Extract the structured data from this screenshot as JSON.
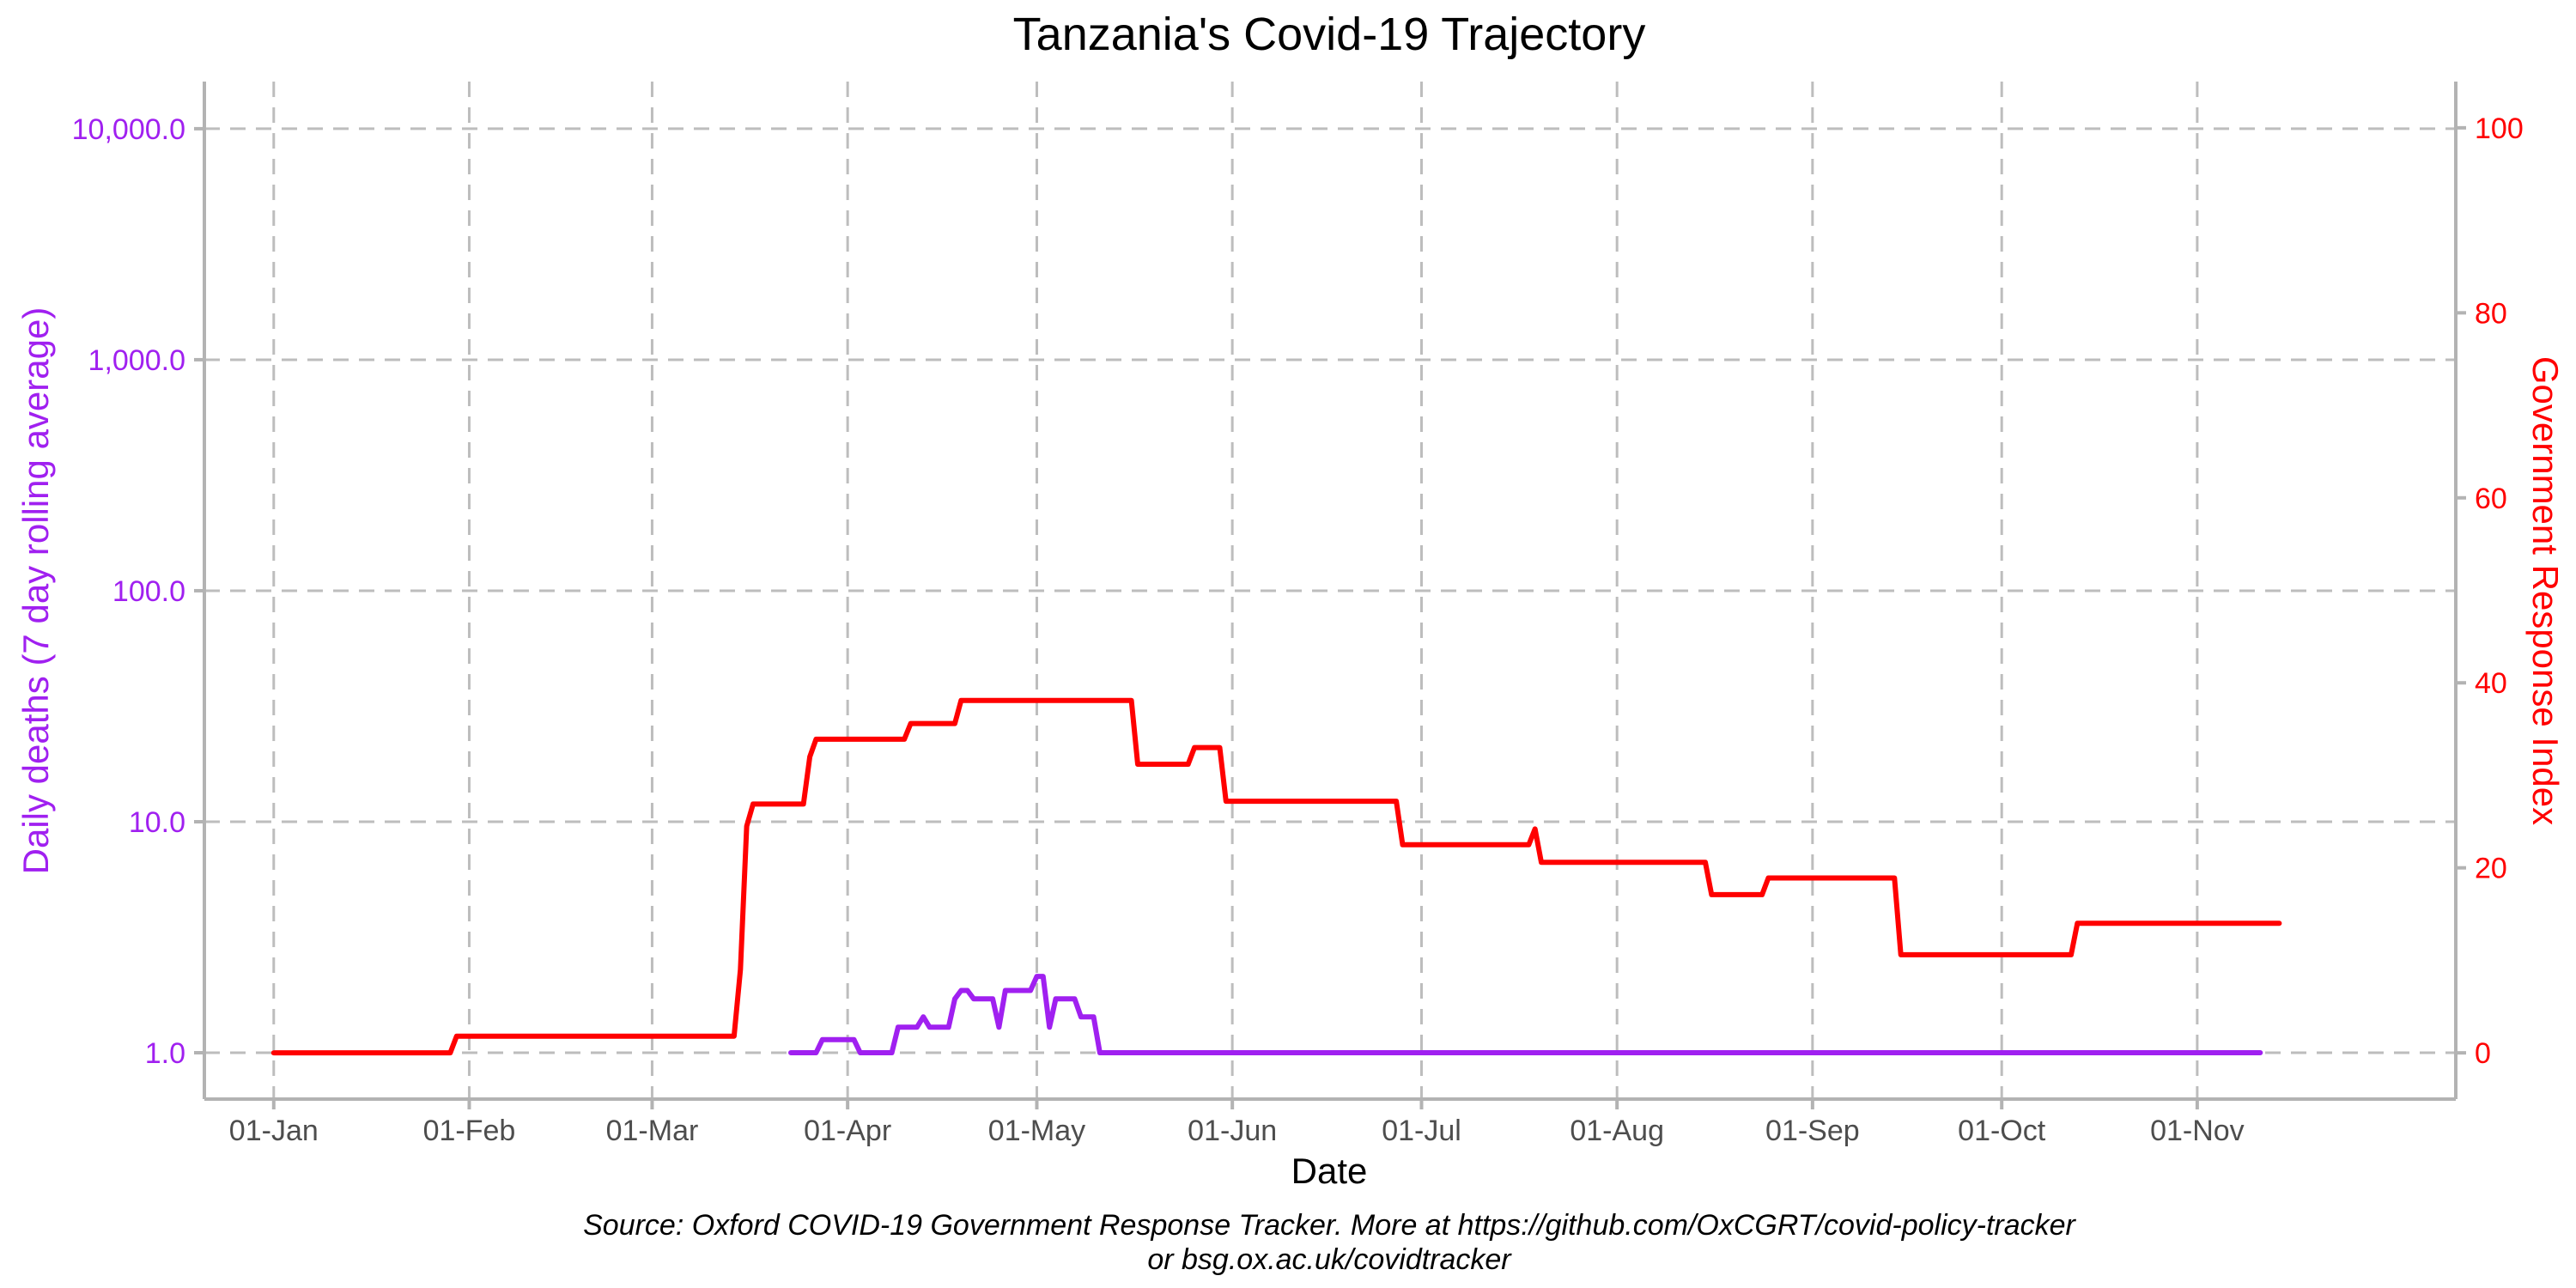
{
  "chart_data": {
    "type": "line",
    "title": "Tanzania's Covid-19 Trajectory",
    "xlabel": "Date",
    "ylabel_left": "Daily deaths (7 day rolling average)",
    "ylabel_right": "Government Response Index",
    "caption_line1": "Source: Oxford COVID-19 Government Response Tracker. More at https://github.com/OxCGRT/covid-policy-tracker",
    "caption_line2": "or bsg.ox.ac.uk/covidtracker",
    "x_domain_days": [
      -11,
      346
    ],
    "x_ticks": [
      {
        "day": 0,
        "label": "01-Jan"
      },
      {
        "day": 31,
        "label": "01-Feb"
      },
      {
        "day": 60,
        "label": "01-Mar"
      },
      {
        "day": 91,
        "label": "01-Apr"
      },
      {
        "day": 121,
        "label": "01-May"
      },
      {
        "day": 152,
        "label": "01-Jun"
      },
      {
        "day": 182,
        "label": "01-Jul"
      },
      {
        "day": 213,
        "label": "01-Aug"
      },
      {
        "day": 244,
        "label": "01-Sep"
      },
      {
        "day": 274,
        "label": "01-Oct"
      },
      {
        "day": 305,
        "label": "01-Nov"
      }
    ],
    "y_left": {
      "scale": "log10",
      "ylim": [
        0.63,
        16000
      ],
      "ticks": [
        {
          "value": 1,
          "label": "1.0"
        },
        {
          "value": 10,
          "label": "10.0"
        },
        {
          "value": 100,
          "label": "100.0"
        },
        {
          "value": 1000,
          "label": "1,000.0"
        },
        {
          "value": 10000,
          "label": "10,000.0"
        }
      ]
    },
    "y_right": {
      "scale": "linear",
      "ylim": [
        -5,
        105
      ],
      "ticks": [
        {
          "value": 0,
          "label": "0"
        },
        {
          "value": 20,
          "label": "20"
        },
        {
          "value": 40,
          "label": "40"
        },
        {
          "value": 60,
          "label": "60"
        },
        {
          "value": 80,
          "label": "80"
        },
        {
          "value": 100,
          "label": "100"
        }
      ]
    },
    "series": [
      {
        "name": "Daily deaths (7 day rolling average)",
        "axis": "left",
        "color": "#a020f0",
        "points": [
          [
            82,
            1.0
          ],
          [
            86,
            1.0
          ],
          [
            87,
            1.14
          ],
          [
            92,
            1.14
          ],
          [
            93,
            1.0
          ],
          [
            98,
            1.0
          ],
          [
            99,
            1.29
          ],
          [
            102,
            1.29
          ],
          [
            103,
            1.43
          ],
          [
            104,
            1.29
          ],
          [
            107,
            1.29
          ],
          [
            108,
            1.71
          ],
          [
            109,
            1.86
          ],
          [
            110,
            1.86
          ],
          [
            111,
            1.71
          ],
          [
            114,
            1.71
          ],
          [
            115,
            1.29
          ],
          [
            116,
            1.86
          ],
          [
            120,
            1.86
          ],
          [
            121,
            2.14
          ],
          [
            122,
            2.14
          ],
          [
            123,
            1.29
          ],
          [
            124,
            1.71
          ],
          [
            127,
            1.71
          ],
          [
            128,
            1.43
          ],
          [
            130,
            1.43
          ],
          [
            131,
            1.0
          ],
          [
            315,
            1.0
          ]
        ]
      },
      {
        "name": "Government Response Index",
        "axis": "right",
        "color": "#ff0000",
        "points": [
          [
            0,
            0
          ],
          [
            28,
            0
          ],
          [
            29,
            1.8
          ],
          [
            73,
            1.8
          ],
          [
            74,
            9
          ],
          [
            75,
            24.5
          ],
          [
            76,
            26.9
          ],
          [
            84,
            26.9
          ],
          [
            85,
            32
          ],
          [
            86,
            33.9
          ],
          [
            100,
            33.9
          ],
          [
            101,
            35.6
          ],
          [
            108,
            35.6
          ],
          [
            109,
            38.1
          ],
          [
            136,
            38.1
          ],
          [
            137,
            31.2
          ],
          [
            145,
            31.2
          ],
          [
            146,
            33
          ],
          [
            150,
            33
          ],
          [
            151,
            27.2
          ],
          [
            178,
            27.2
          ],
          [
            179,
            22.5
          ],
          [
            199,
            22.5
          ],
          [
            200,
            24.2
          ],
          [
            201,
            20.6
          ],
          [
            227,
            20.6
          ],
          [
            228,
            17.1
          ],
          [
            236,
            17.1
          ],
          [
            237,
            18.9
          ],
          [
            257,
            18.9
          ],
          [
            258,
            10.6
          ],
          [
            285,
            10.6
          ],
          [
            286,
            14
          ],
          [
            318,
            14
          ]
        ]
      }
    ]
  }
}
